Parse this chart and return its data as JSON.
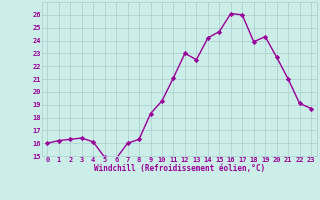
{
  "x": [
    0,
    1,
    2,
    3,
    4,
    5,
    6,
    7,
    8,
    9,
    10,
    11,
    12,
    13,
    14,
    15,
    16,
    17,
    18,
    19,
    20,
    21,
    22,
    23
  ],
  "y": [
    16.0,
    16.2,
    16.3,
    16.4,
    16.1,
    14.9,
    14.8,
    16.0,
    16.3,
    18.3,
    19.3,
    21.1,
    23.0,
    22.5,
    24.2,
    24.7,
    26.1,
    26.0,
    23.9,
    24.3,
    22.7,
    21.0,
    19.1,
    18.7
  ],
  "line_color": "#990099",
  "marker": "D",
  "marker_size": 2.2,
  "bg_color": "#cceee8",
  "grid_color": "#aacccc",
  "xlabel": "Windchill (Refroidissement éolien,°C)",
  "xlabel_color": "#990099",
  "tick_color": "#990099",
  "ylim": [
    15,
    27
  ],
  "yticks": [
    15,
    16,
    17,
    18,
    19,
    20,
    21,
    22,
    23,
    24,
    25,
    26
  ],
  "xticks": [
    0,
    1,
    2,
    3,
    4,
    5,
    6,
    7,
    8,
    9,
    10,
    11,
    12,
    13,
    14,
    15,
    16,
    17,
    18,
    19,
    20,
    21,
    22,
    23
  ],
  "xlim": [
    -0.5,
    23.5
  ],
  "line_width": 1.0
}
